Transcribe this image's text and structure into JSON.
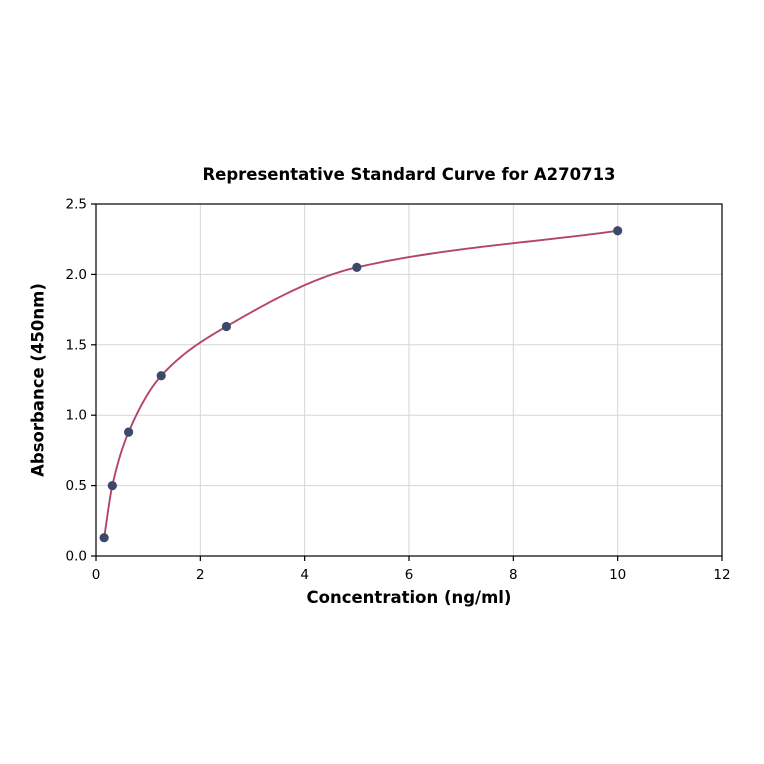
{
  "chart_data": {
    "type": "scatter",
    "title": "Representative Standard Curve for A270713",
    "xlabel": "Concentration (ng/ml)",
    "ylabel": "Absorbance (450nm)",
    "xlim": [
      0,
      12
    ],
    "ylim": [
      0,
      2.5
    ],
    "x_ticks": [
      0,
      2,
      4,
      6,
      8,
      10,
      12
    ],
    "x_tick_labels": [
      "0",
      "2",
      "4",
      "6",
      "8",
      "10",
      "12"
    ],
    "y_ticks": [
      0.0,
      0.5,
      1.0,
      1.5,
      2.0,
      2.5
    ],
    "y_tick_labels": [
      "0.0",
      "0.5",
      "1.0",
      "1.5",
      "2.0",
      "2.5"
    ],
    "grid": true,
    "legend": "none",
    "points": {
      "x": [
        0.156,
        0.313,
        0.625,
        1.25,
        2.5,
        5,
        10
      ],
      "y": [
        0.13,
        0.5,
        0.88,
        1.28,
        1.63,
        2.05,
        2.31
      ]
    },
    "fit_curve": "smooth saturating curve through all points",
    "colors": {
      "curve": "#b5446b",
      "points": "#3b4a6a",
      "grid": "#d5d5d5",
      "axis": "#000000",
      "background": "#ffffff"
    }
  }
}
